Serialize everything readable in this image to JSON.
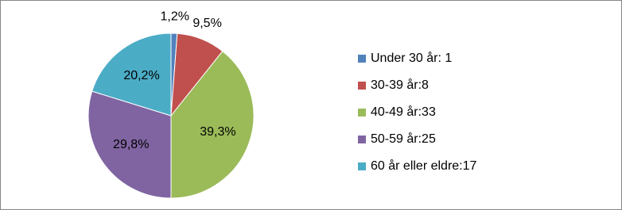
{
  "chart_data": {
    "type": "pie",
    "categories": [
      "Under 30 år: 1",
      "30-39 år:8",
      "40-49 år:33",
      "50-59 år:25",
      "60 år eller eldre:17"
    ],
    "values": [
      1.2,
      9.5,
      39.3,
      29.8,
      20.2
    ],
    "value_labels": [
      "1,2%",
      "9,5%",
      "39,3%",
      "29,8%",
      "20,2%"
    ],
    "colors": [
      "#4f81bd",
      "#c0504d",
      "#9bbb59",
      "#8064a2",
      "#4bacc6"
    ],
    "legend": "right"
  }
}
